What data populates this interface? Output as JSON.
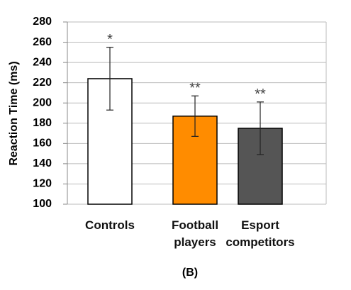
{
  "chart_data": {
    "type": "bar",
    "y_label": "Reaction Time (ms)",
    "caption": "(B)",
    "categories": [
      "Controls",
      "Football players",
      "Esport competitors"
    ],
    "values": [
      224,
      187,
      175
    ],
    "errors": [
      31,
      20,
      26
    ],
    "annotations": [
      "*",
      "**",
      "**"
    ],
    "colors": [
      "#ffffff",
      "#ff8c00",
      "#555555"
    ],
    "ylim": [
      100,
      280
    ],
    "yticks": [
      100,
      120,
      140,
      160,
      180,
      200,
      220,
      240,
      260,
      280
    ],
    "grid": true
  }
}
